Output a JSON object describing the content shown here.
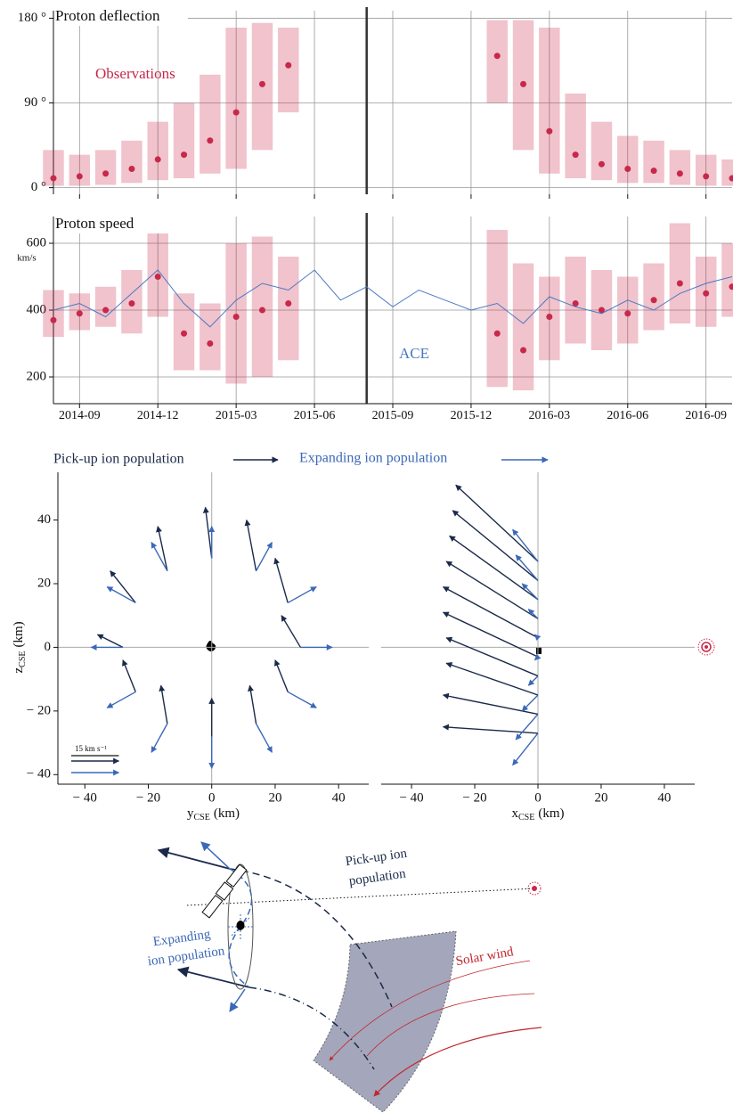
{
  "chart_data": [
    {
      "type": "range",
      "title": "Proton deflection",
      "x": [
        "2014-08",
        "2014-09",
        "2014-10",
        "2014-11",
        "2014-12",
        "2015-01",
        "2015-02",
        "2015-03",
        "2015-04",
        "2015-05",
        "2015-06",
        "2015-07",
        "2015-08",
        "2015-09",
        "2015-10",
        "2015-11",
        "2015-12",
        "2016-01",
        "2016-02",
        "2016-03",
        "2016-04",
        "2016-05",
        "2016-06",
        "2016-07",
        "2016-08",
        "2016-09",
        "2016-10"
      ],
      "xlim": [
        "2014-08",
        "2016-10"
      ],
      "ylim": [
        -7,
        188
      ],
      "yticks": [
        {
          "value": 0,
          "label": "0 °"
        },
        {
          "value": 90,
          "label": "90 °"
        },
        {
          "value": 180,
          "label": "180 °"
        }
      ],
      "event_x": "2015-08",
      "grid": true,
      "series": [
        {
          "name": "Observations",
          "color": "#c8284a",
          "values": [
            10,
            12,
            15,
            20,
            30,
            35,
            50,
            80,
            110,
            130,
            null,
            null,
            null,
            null,
            null,
            null,
            null,
            140,
            110,
            60,
            35,
            25,
            20,
            18,
            15,
            12,
            10
          ],
          "low": [
            2,
            2,
            3,
            5,
            8,
            10,
            15,
            20,
            40,
            80,
            null,
            null,
            null,
            null,
            null,
            null,
            null,
            90,
            40,
            15,
            10,
            8,
            5,
            5,
            3,
            2,
            2
          ],
          "high": [
            40,
            35,
            40,
            50,
            70,
            90,
            120,
            170,
            175,
            170,
            null,
            null,
            null,
            null,
            null,
            null,
            null,
            178,
            178,
            170,
            100,
            70,
            55,
            50,
            40,
            35,
            30
          ]
        }
      ]
    },
    {
      "type": "range",
      "title": "Proton speed",
      "y_unit": "km/s",
      "x": [
        "2014-08",
        "2014-09",
        "2014-10",
        "2014-11",
        "2014-12",
        "2015-01",
        "2015-02",
        "2015-03",
        "2015-04",
        "2015-05",
        "2015-06",
        "2015-07",
        "2015-08",
        "2015-09",
        "2015-10",
        "2015-11",
        "2015-12",
        "2016-01",
        "2016-02",
        "2016-03",
        "2016-04",
        "2016-05",
        "2016-06",
        "2016-07",
        "2016-08",
        "2016-09",
        "2016-10"
      ],
      "xlim": [
        "2014-08",
        "2016-10"
      ],
      "xticks": [
        "2014-09",
        "2014-12",
        "2015-03",
        "2015-06",
        "2015-09",
        "2015-12",
        "2016-03",
        "2016-06",
        "2016-09"
      ],
      "ylim": [
        120,
        680
      ],
      "yticks": [
        200,
        400,
        600
      ],
      "event_x": "2015-08",
      "grid": true,
      "series": [
        {
          "color": "#c8284a",
          "values": [
            370,
            390,
            400,
            420,
            500,
            330,
            300,
            380,
            400,
            420,
            null,
            null,
            null,
            null,
            null,
            null,
            null,
            330,
            280,
            380,
            420,
            400,
            390,
            430,
            480,
            450,
            470
          ],
          "low": [
            320,
            340,
            350,
            330,
            380,
            220,
            220,
            180,
            200,
            250,
            null,
            null,
            null,
            null,
            null,
            null,
            null,
            170,
            160,
            250,
            300,
            280,
            300,
            340,
            360,
            350,
            380
          ],
          "high": [
            460,
            450,
            470,
            520,
            680,
            450,
            420,
            600,
            620,
            560,
            null,
            null,
            null,
            null,
            null,
            null,
            null,
            640,
            540,
            500,
            560,
            520,
            500,
            540,
            660,
            560,
            600
          ]
        },
        {
          "name": "ACE",
          "color": "#4a78c2",
          "values": [
            400,
            420,
            380,
            450,
            520,
            420,
            350,
            430,
            480,
            460,
            520,
            430,
            470,
            410,
            460,
            430,
            400,
            420,
            360,
            440,
            410,
            390,
            430,
            400,
            450,
            480,
            500
          ]
        }
      ]
    },
    {
      "type": "quiver",
      "xlim": [
        -48.5,
        49.5
      ],
      "ylim": [
        -43,
        55
      ],
      "xticks": [
        {
          "value": -40,
          "label": "− 40"
        },
        {
          "value": -20,
          "label": "− 20"
        },
        0,
        20,
        40
      ],
      "yticks": [
        {
          "value": -40,
          "label": "− 40"
        },
        {
          "value": -20,
          "label": "− 20"
        },
        0,
        20,
        40
      ],
      "x_label": "y",
      "x_label_sub": "CSE",
      "x_label_unit": "(km)",
      "y_label": "z",
      "y_label_sub": "CSE",
      "y_label_unit": "(km)",
      "scale": {
        "label": "15 km s⁻¹",
        "value": 15
      },
      "series": [
        {
          "name": "Pick-up ion population",
          "color": "#1b2a4a",
          "x": [
            28,
            24,
            14,
            0,
            -14,
            -24,
            -28,
            -24,
            -14,
            0,
            14,
            24
          ],
          "y": [
            0,
            14,
            24,
            28,
            24,
            14,
            0,
            -14,
            -24,
            -28,
            -24,
            -14
          ],
          "u": [
            -6,
            -4,
            -3,
            -2,
            -3,
            -8,
            -8,
            -4,
            -2,
            0,
            -2,
            -4
          ],
          "v": [
            10,
            14,
            16,
            16,
            14,
            10,
            4,
            10,
            12,
            12,
            12,
            10
          ]
        },
        {
          "name": "Expanding ion population",
          "color": "#3b68b8",
          "x": [
            28,
            24,
            14,
            0,
            -14,
            -24,
            -28,
            -24,
            -14,
            0,
            14,
            24
          ],
          "y": [
            0,
            14,
            24,
            28,
            24,
            14,
            0,
            -14,
            -24,
            -28,
            -24,
            -14
          ],
          "u": [
            10,
            9,
            5,
            0,
            -5,
            -9,
            -10,
            -9,
            -5,
            0,
            5,
            9
          ],
          "v": [
            0,
            5,
            9,
            10,
            9,
            5,
            0,
            -5,
            -9,
            -10,
            -9,
            -5
          ]
        }
      ]
    },
    {
      "type": "quiver",
      "xlim": [
        -49.6,
        49.6
      ],
      "ylim": [
        -43,
        55
      ],
      "xticks": [
        {
          "value": -40,
          "label": "− 40"
        },
        {
          "value": -20,
          "label": "− 20"
        },
        0,
        20,
        40
      ],
      "x_label": "x",
      "x_label_sub": "CSE",
      "x_label_unit": "(km)",
      "series": [
        {
          "color": "#1b2a4a",
          "x": [
            0,
            0,
            0,
            0,
            0,
            0,
            0,
            0,
            0,
            0
          ],
          "y": [
            -27,
            -21,
            -15,
            -9,
            -3,
            3,
            9,
            15,
            21,
            27
          ],
          "u": [
            -30,
            -30,
            -29,
            -29,
            -30,
            -30,
            -29,
            -28,
            -27,
            -26
          ],
          "v": [
            2,
            6,
            10,
            12,
            14,
            16,
            18,
            20,
            22,
            24
          ]
        },
        {
          "color": "#3b68b8",
          "x": [
            0,
            0,
            0,
            0,
            0,
            0,
            0,
            0,
            0,
            0
          ],
          "y": [
            -27,
            -21,
            -15,
            -9,
            -3,
            3,
            9,
            15,
            21,
            27
          ],
          "u": [
            -8,
            -7,
            -5,
            -3,
            -1,
            -1,
            -3,
            -5,
            -7,
            -8
          ],
          "v": [
            -10,
            -8,
            -5,
            -3,
            -1,
            1,
            3,
            5,
            8,
            10
          ]
        }
      ]
    }
  ],
  "diagram": {
    "pickup_label": [
      "Pick-up ion",
      "population"
    ],
    "expanding_label": [
      "Expanding",
      "ion population"
    ],
    "solar_wind": "Solar wind"
  }
}
